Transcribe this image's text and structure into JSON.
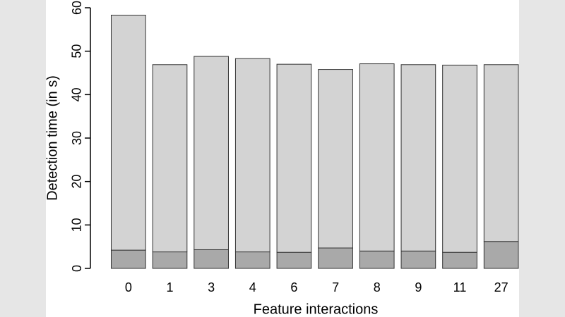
{
  "chart_data": {
    "type": "stacked_bar",
    "x_label": "Feature interactions",
    "y_label": "Detection time (in s)",
    "categories": [
      "0",
      "1",
      "3",
      "4",
      "6",
      "7",
      "8",
      "9",
      "11",
      "27"
    ],
    "series": [
      {
        "color": "#a9a9a9",
        "values": [
          4.2,
          3.8,
          4.3,
          3.8,
          3.7,
          4.7,
          4.0,
          4.0,
          3.7,
          6.2
        ]
      },
      {
        "color": "#d3d3d3",
        "values": [
          54.1,
          43.1,
          44.5,
          44.5,
          43.3,
          41.1,
          43.1,
          42.9,
          43.1,
          40.7
        ]
      }
    ],
    "ylim": [
      0,
      60
    ],
    "yticks": [
      0,
      10,
      20,
      30,
      40,
      50,
      60
    ],
    "grid": false
  }
}
